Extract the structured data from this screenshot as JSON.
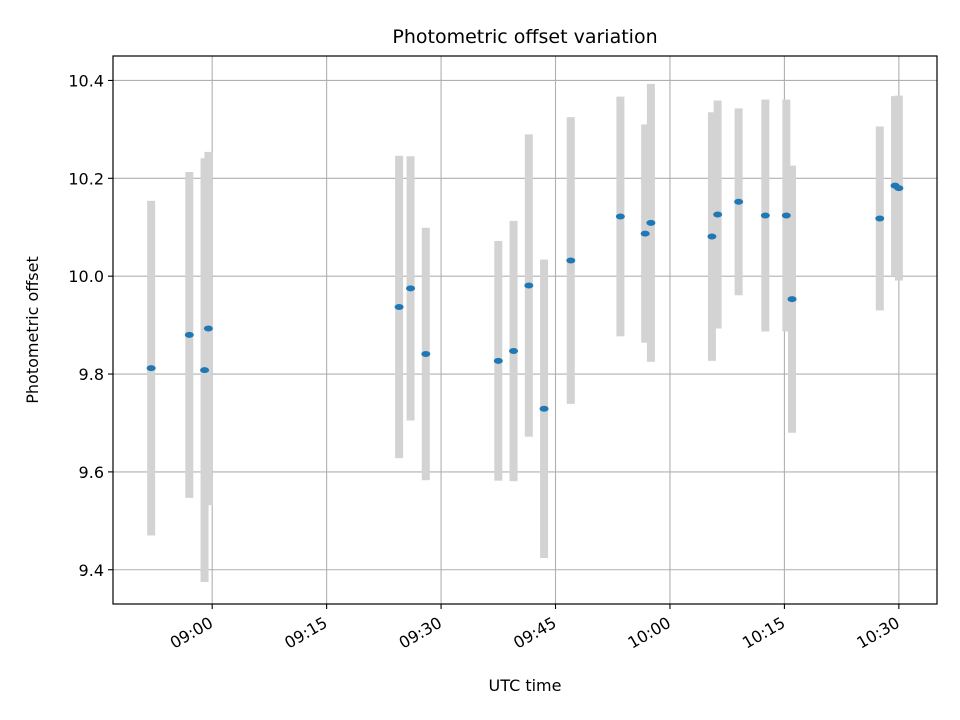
{
  "chart_data": {
    "type": "scatter",
    "title": "Photometric offset variation",
    "xlabel": "UTC time",
    "ylabel": "Photometric offset",
    "x_unit": "UTC time of day",
    "xlim": [
      "08:47",
      "10:35"
    ],
    "ylim": [
      9.33,
      10.45
    ],
    "xticks": [
      "09:00",
      "09:15",
      "09:30",
      "09:45",
      "10:00",
      "10:15",
      "10:30"
    ],
    "yticks": [
      "9.4",
      "9.6",
      "9.8",
      "10.0",
      "10.2",
      "10.4"
    ],
    "grid": true,
    "colors": {
      "point": "#1f77b4",
      "errorbar": "#d3d3d3",
      "grid": "#b0b0b0"
    },
    "points": [
      {
        "x": "08:52:00",
        "y": 9.812,
        "yerr": 0.342
      },
      {
        "x": "08:57:00",
        "y": 9.88,
        "yerr": 0.333
      },
      {
        "x": "08:59:00",
        "y": 9.808,
        "yerr": 0.433
      },
      {
        "x": "08:59:30",
        "y": 9.893,
        "yerr": 0.361
      },
      {
        "x": "09:24:30",
        "y": 9.937,
        "yerr": 0.309
      },
      {
        "x": "09:26:00",
        "y": 9.975,
        "yerr": 0.27
      },
      {
        "x": "09:28:00",
        "y": 9.841,
        "yerr": 0.258
      },
      {
        "x": "09:37:30",
        "y": 9.827,
        "yerr": 0.245
      },
      {
        "x": "09:39:30",
        "y": 9.847,
        "yerr": 0.266
      },
      {
        "x": "09:41:30",
        "y": 9.981,
        "yerr": 0.309
      },
      {
        "x": "09:43:30",
        "y": 9.729,
        "yerr": 0.305
      },
      {
        "x": "09:47:00",
        "y": 10.032,
        "yerr": 0.293
      },
      {
        "x": "09:53:30",
        "y": 10.122,
        "yerr": 0.245
      },
      {
        "x": "09:56:45",
        "y": 10.087,
        "yerr": 0.223
      },
      {
        "x": "09:57:30",
        "y": 10.109,
        "yerr": 0.284
      },
      {
        "x": "10:05:30",
        "y": 10.081,
        "yerr": 0.254
      },
      {
        "x": "10:06:15",
        "y": 10.126,
        "yerr": 0.233
      },
      {
        "x": "10:09:00",
        "y": 10.152,
        "yerr": 0.191
      },
      {
        "x": "10:12:30",
        "y": 10.124,
        "yerr": 0.237
      },
      {
        "x": "10:15:15",
        "y": 10.124,
        "yerr": 0.237
      },
      {
        "x": "10:16:00",
        "y": 9.953,
        "yerr": 0.273
      },
      {
        "x": "10:27:30",
        "y": 10.118,
        "yerr": 0.188
      },
      {
        "x": "10:29:30",
        "y": 10.185,
        "yerr": 0.183
      },
      {
        "x": "10:30:00",
        "y": 10.18,
        "yerr": 0.189
      }
    ]
  }
}
